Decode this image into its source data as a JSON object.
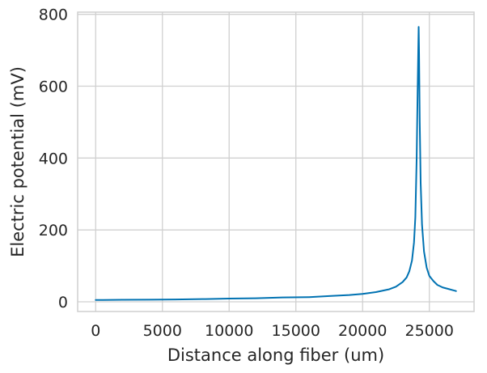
{
  "chart_data": {
    "type": "line",
    "title": "",
    "xlabel": "Distance along fiber (um)",
    "ylabel": "Electric potential (mV)",
    "xlim": [
      -1350,
      28350
    ],
    "ylim": [
      -27,
      806
    ],
    "xticks": [
      0,
      5000,
      10000,
      15000,
      20000,
      25000
    ],
    "yticks": [
      0,
      200,
      400,
      600,
      800
    ],
    "xtick_labels": [
      "0",
      "5000",
      "10000",
      "15000",
      "20000",
      "25000"
    ],
    "ytick_labels": [
      "0",
      "200",
      "400",
      "600",
      "800"
    ],
    "grid": true,
    "legend": "none",
    "colors": {
      "series": "#0072b2",
      "grid": "#d0d0d0",
      "spine": "#cfcfcf",
      "text": "#262626"
    },
    "series": [
      {
        "x": [
          0,
          2000,
          4000,
          6000,
          8000,
          10000,
          12000,
          14000,
          16000,
          17500,
          19000,
          20000,
          21000,
          22000,
          22500,
          23000,
          23300,
          23500,
          23700,
          23850,
          23950,
          24050,
          24120,
          24170,
          24200,
          24230,
          24280,
          24350,
          24450,
          24600,
          24800,
          25000,
          25300,
          25600,
          26000,
          26400,
          26800,
          27000
        ],
        "y": [
          5,
          5.5,
          6,
          6.5,
          7.5,
          9,
          10,
          12,
          13,
          16,
          19,
          22,
          27,
          35,
          42,
          55,
          68,
          85,
          115,
          165,
          235,
          400,
          580,
          700,
          765,
          690,
          500,
          330,
          215,
          140,
          95,
          72,
          58,
          47,
          40,
          36,
          32,
          30
        ]
      }
    ]
  }
}
